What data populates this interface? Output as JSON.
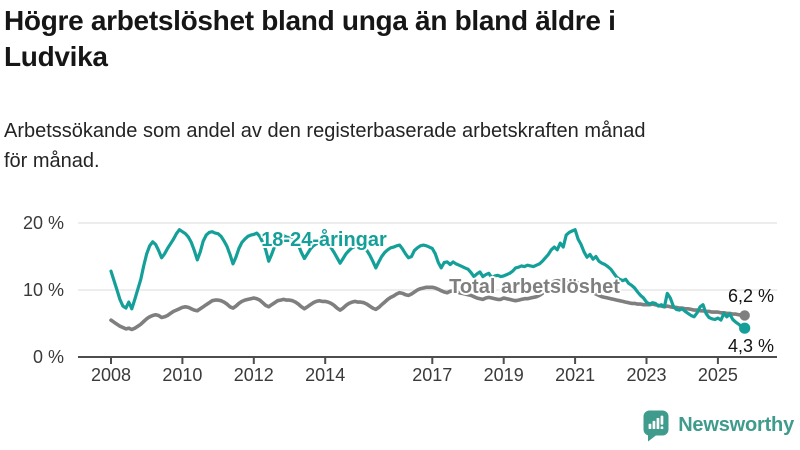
{
  "header": {
    "title_lines": [
      "Högre arbetslöshet bland unga än bland äldre i",
      "Ludvika"
    ],
    "subtitle_lines": [
      "Arbetssökande som andel av den registerbaserade arbetskraften månad",
      "för månad."
    ]
  },
  "footer": {
    "brand": "Newsworthy"
  },
  "colors": {
    "young_line": "#14a098",
    "total_line": "#7f7f7f",
    "grid": "#e2e2e2",
    "axis": "#4d4d4d",
    "logo": "#3f9b8c"
  },
  "chart_data": {
    "type": "line",
    "frequency": "monthly",
    "x_start": "2008-01",
    "x_end": "2025-10",
    "ylim": [
      0,
      21
    ],
    "grid": "horizontal",
    "legend_position": "inline-labels",
    "y_ticks": [
      {
        "label": "20 %",
        "value": 20
      },
      {
        "label": "10 %",
        "value": 10
      },
      {
        "label": "0 %",
        "value": 0
      }
    ],
    "x_ticks": [
      {
        "label": "2008",
        "year": 2008
      },
      {
        "label": "2010",
        "year": 2010
      },
      {
        "label": "2012",
        "year": 2012
      },
      {
        "label": "2014",
        "year": 2014
      },
      {
        "label": "2017",
        "year": 2017
      },
      {
        "label": "2019",
        "year": 2019
      },
      {
        "label": "2021",
        "year": 2021
      },
      {
        "label": "2023",
        "year": 2023
      },
      {
        "label": "2025",
        "year": 2025
      }
    ],
    "series": [
      {
        "name": "18-24-åringar",
        "color": "#14a098",
        "end_label": "4,3 %",
        "end_value": 4.3,
        "values": [
          12.8,
          11.4,
          10.0,
          8.6,
          7.6,
          7.3,
          8.2,
          7.2,
          8.6,
          10.1,
          11.6,
          13.6,
          15.4,
          16.6,
          17.2,
          16.8,
          15.9,
          14.8,
          15.4,
          16.2,
          16.9,
          17.6,
          18.4,
          19.0,
          18.7,
          18.4,
          17.9,
          17.1,
          15.9,
          14.5,
          15.7,
          17.3,
          18.2,
          18.6,
          18.7,
          18.5,
          18.4,
          18.0,
          17.3,
          16.5,
          15.3,
          13.9,
          14.9,
          16.2,
          17.1,
          17.6,
          18.0,
          18.2,
          18.3,
          18.5,
          18.0,
          17.1,
          16.0,
          14.3,
          15.3,
          16.5,
          17.3,
          17.8,
          18.1,
          17.9,
          17.8,
          18.0,
          17.4,
          16.7,
          15.6,
          14.7,
          15.4,
          16.1,
          16.6,
          16.9,
          17.0,
          16.8,
          16.7,
          16.9,
          16.3,
          15.6,
          14.8,
          14.0,
          14.7,
          15.4,
          15.9,
          16.3,
          16.5,
          16.4,
          16.3,
          16.5,
          15.9,
          15.2,
          14.3,
          13.3,
          14.2,
          15.0,
          15.6,
          16.0,
          16.3,
          16.4,
          16.6,
          16.7,
          16.1,
          15.4,
          14.8,
          15.0,
          15.9,
          16.3,
          16.6,
          16.7,
          16.6,
          16.4,
          16.2,
          15.4,
          14.1,
          13.3,
          14.1,
          14.2,
          13.8,
          14.2,
          13.9,
          13.7,
          13.5,
          13.3,
          13.1,
          12.6,
          12.0,
          12.4,
          12.7,
          12.0,
          12.3,
          12.5,
          11.8,
          12.1,
          12.2,
          12.0,
          12.1,
          12.3,
          12.5,
          12.8,
          13.3,
          13.4,
          13.6,
          13.5,
          13.7,
          13.6,
          13.5,
          13.7,
          13.9,
          14.3,
          14.8,
          15.3,
          16.0,
          16.4,
          16.0,
          17.0,
          16.4,
          18.2,
          18.6,
          18.8,
          19.0,
          17.6,
          16.8,
          15.7,
          14.9,
          15.3,
          14.6,
          15.0,
          14.3,
          14.0,
          13.8,
          13.5,
          13.1,
          12.5,
          11.9,
          11.6,
          11.4,
          11.6,
          11.0,
          10.7,
          10.3,
          9.7,
          9.2,
          8.8,
          8.2,
          7.9,
          8.1,
          8.0,
          7.6,
          7.8,
          7.5,
          9.5,
          8.8,
          7.6,
          7.1,
          7.0,
          7.2,
          6.8,
          6.5,
          6.2,
          6.0,
          6.6,
          7.5,
          7.8,
          6.5,
          5.9,
          5.7,
          5.6,
          5.8,
          5.5,
          6.5,
          6.0,
          6.4,
          5.6,
          5.2,
          4.9,
          4.5,
          4.3
        ]
      },
      {
        "name": "Total arbetslöshet",
        "color": "#7f7f7f",
        "end_label": "6,2 %",
        "end_value": 6.2,
        "values": [
          5.5,
          5.2,
          4.9,
          4.6,
          4.4,
          4.2,
          4.3,
          4.1,
          4.3,
          4.6,
          4.9,
          5.3,
          5.7,
          6.0,
          6.2,
          6.3,
          6.2,
          5.9,
          6.0,
          6.2,
          6.5,
          6.8,
          7.0,
          7.2,
          7.4,
          7.5,
          7.4,
          7.2,
          7.0,
          6.9,
          7.2,
          7.5,
          7.8,
          8.1,
          8.4,
          8.5,
          8.5,
          8.4,
          8.2,
          7.9,
          7.5,
          7.3,
          7.6,
          8.0,
          8.3,
          8.5,
          8.6,
          8.7,
          8.8,
          8.7,
          8.5,
          8.1,
          7.7,
          7.5,
          7.8,
          8.1,
          8.4,
          8.5,
          8.6,
          8.5,
          8.5,
          8.4,
          8.2,
          7.9,
          7.5,
          7.2,
          7.5,
          7.8,
          8.1,
          8.3,
          8.4,
          8.3,
          8.3,
          8.2,
          8.0,
          7.7,
          7.3,
          7.0,
          7.3,
          7.7,
          8.0,
          8.2,
          8.3,
          8.2,
          8.2,
          8.1,
          7.9,
          7.6,
          7.3,
          7.1,
          7.4,
          7.8,
          8.2,
          8.6,
          8.9,
          9.1,
          9.4,
          9.6,
          9.5,
          9.3,
          9.2,
          9.4,
          9.7,
          10.0,
          10.2,
          10.3,
          10.4,
          10.4,
          10.4,
          10.3,
          10.1,
          9.9,
          9.7,
          9.6,
          9.8,
          9.9,
          9.8,
          9.6,
          9.5,
          9.4,
          9.3,
          9.2,
          9.0,
          8.8,
          8.7,
          8.6,
          8.8,
          8.9,
          8.8,
          8.7,
          8.6,
          8.6,
          8.8,
          8.7,
          8.6,
          8.5,
          8.4,
          8.5,
          8.6,
          8.7,
          8.7,
          8.8,
          8.9,
          9.0,
          9.2,
          9.5,
          10.0,
          10.6,
          11.0,
          11.3,
          11.4,
          11.3,
          11.2,
          11.1,
          11.0,
          11.1,
          11.2,
          11.0,
          10.7,
          10.4,
          10.1,
          9.8,
          9.6,
          9.4,
          9.2,
          9.0,
          8.9,
          8.8,
          8.7,
          8.6,
          8.5,
          8.4,
          8.3,
          8.2,
          8.1,
          8.0,
          8.0,
          7.9,
          7.9,
          7.8,
          7.8,
          7.8,
          7.9,
          7.8,
          7.7,
          7.6,
          7.5,
          7.6,
          7.5,
          7.4,
          7.4,
          7.3,
          7.3,
          7.2,
          7.2,
          7.1,
          7.0,
          7.0,
          6.9,
          6.9,
          6.8,
          6.8,
          6.7,
          6.7,
          6.7,
          6.6,
          6.6,
          6.5,
          6.5,
          6.4,
          6.4,
          6.3,
          6.3,
          6.2
        ]
      }
    ]
  }
}
